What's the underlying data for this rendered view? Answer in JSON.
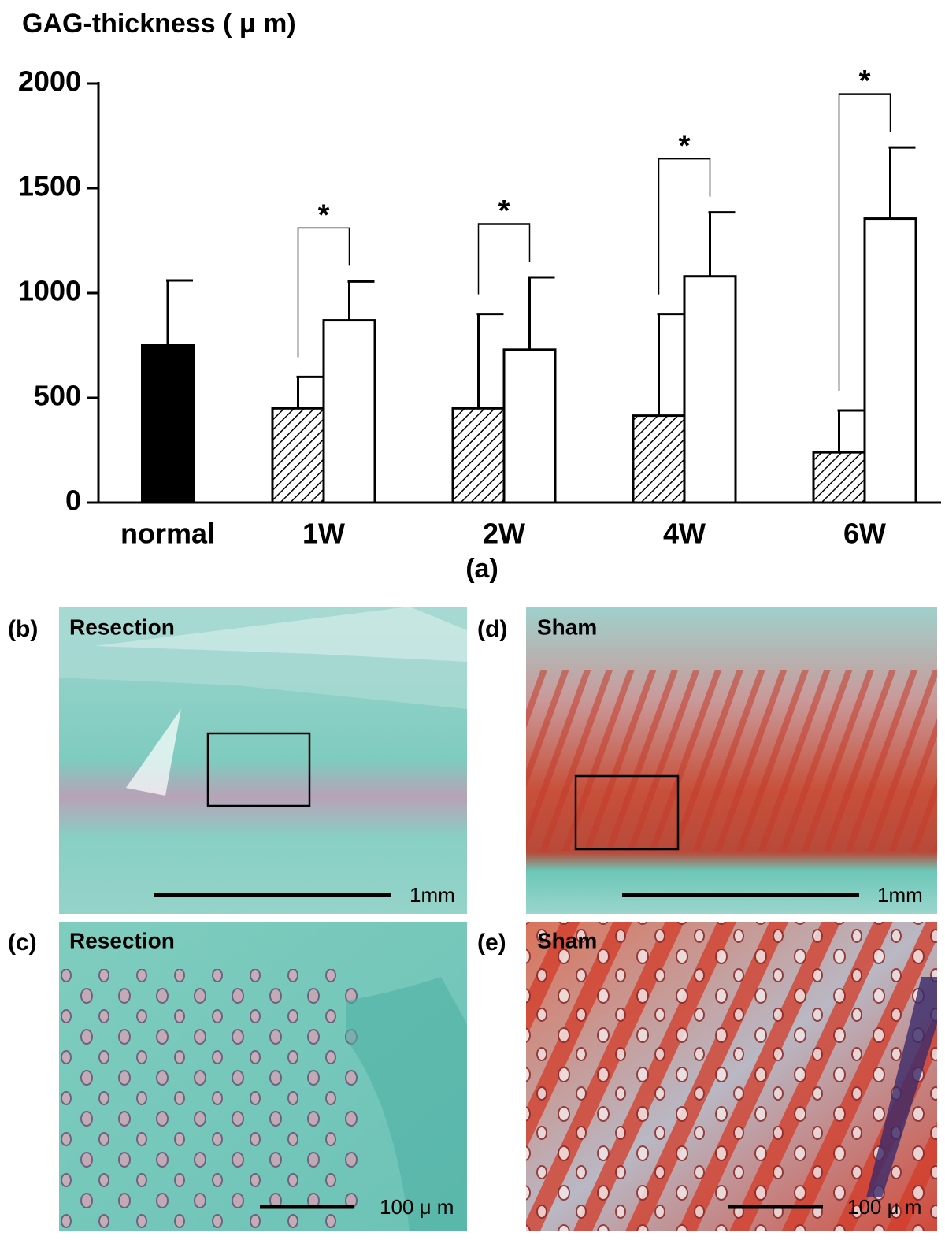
{
  "chart_data": {
    "type": "bar",
    "title": "GAG-thickness ( μ m)",
    "caption": "(a)",
    "categories": [
      "normal",
      "1W",
      "2W",
      "4W",
      "6W"
    ],
    "series": [
      {
        "color": "#000000",
        "fill": "solid",
        "values": [
          750,
          null,
          null,
          null,
          null
        ],
        "errors": [
          310,
          null,
          null,
          null,
          null
        ]
      },
      {
        "color": "#000000",
        "fill": "hatch",
        "values": [
          null,
          450,
          450,
          415,
          240
        ],
        "errors": [
          null,
          150,
          450,
          485,
          200
        ]
      },
      {
        "color": "#000000",
        "fill": "none",
        "values": [
          null,
          870,
          730,
          1080,
          1355
        ],
        "errors": [
          null,
          185,
          345,
          305,
          340
        ]
      }
    ],
    "significance": [
      null,
      "*",
      "*",
      "*",
      "*"
    ],
    "ylim": [
      0,
      2000
    ],
    "yticks": [
      0,
      500,
      1000,
      1500,
      2000
    ],
    "grid": false
  },
  "panels": [
    {
      "label": "(b)",
      "title": "Resection",
      "scale_bar": "1mm"
    },
    {
      "label": "(d)",
      "title": "Sham",
      "scale_bar": "1mm"
    },
    {
      "label": "(c)",
      "title": "Resection",
      "scale_bar": "100 μ m"
    },
    {
      "label": "(e)",
      "title": "Sham",
      "scale_bar": "100 μ m"
    }
  ]
}
